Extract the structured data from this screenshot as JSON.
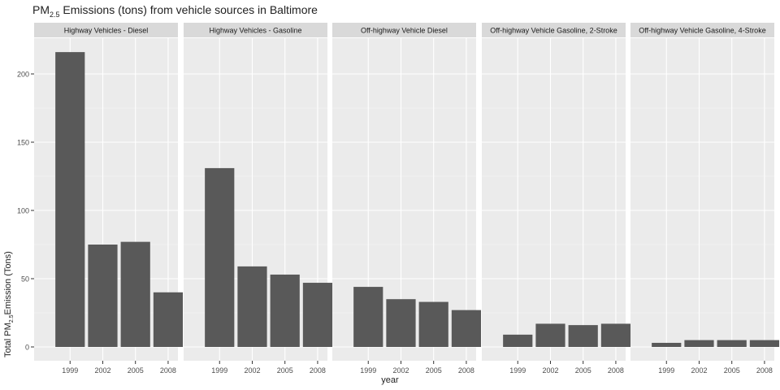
{
  "chart_data": {
    "type": "bar",
    "title": {
      "pre": "PM",
      "sub": "2.5",
      "post": " Emissions (tons) from vehicle sources in Baltimore"
    },
    "ylabel": {
      "pre": "Total PM",
      "sub": "2.5",
      "post": "Emission (Tons)"
    },
    "xlabel": "year",
    "ylim": [
      0,
      225
    ],
    "yticks": [
      0,
      50,
      100,
      150,
      200
    ],
    "categories": [
      "1999",
      "2002",
      "2005",
      "2008"
    ],
    "grid": true,
    "panels": [
      {
        "name": "Highway Vehicles - Diesel",
        "values": [
          216,
          75,
          77,
          40
        ]
      },
      {
        "name": "Highway Vehicles - Gasoline",
        "values": [
          131,
          59,
          53,
          47
        ]
      },
      {
        "name": "Off-highway Vehicle Diesel",
        "values": [
          44,
          35,
          33,
          27
        ]
      },
      {
        "name": "Off-highway Vehicle Gasoline, 2-Stroke",
        "values": [
          9,
          17,
          16,
          17
        ]
      },
      {
        "name": "Off-highway Vehicle Gasoline, 4-Stroke",
        "values": [
          3,
          5,
          5,
          5
        ]
      }
    ],
    "colors": {
      "bar": "#595959",
      "panel_bg": "#ebebeb",
      "strip_bg": "#d9d9d9",
      "grid_major": "#ffffff"
    }
  }
}
